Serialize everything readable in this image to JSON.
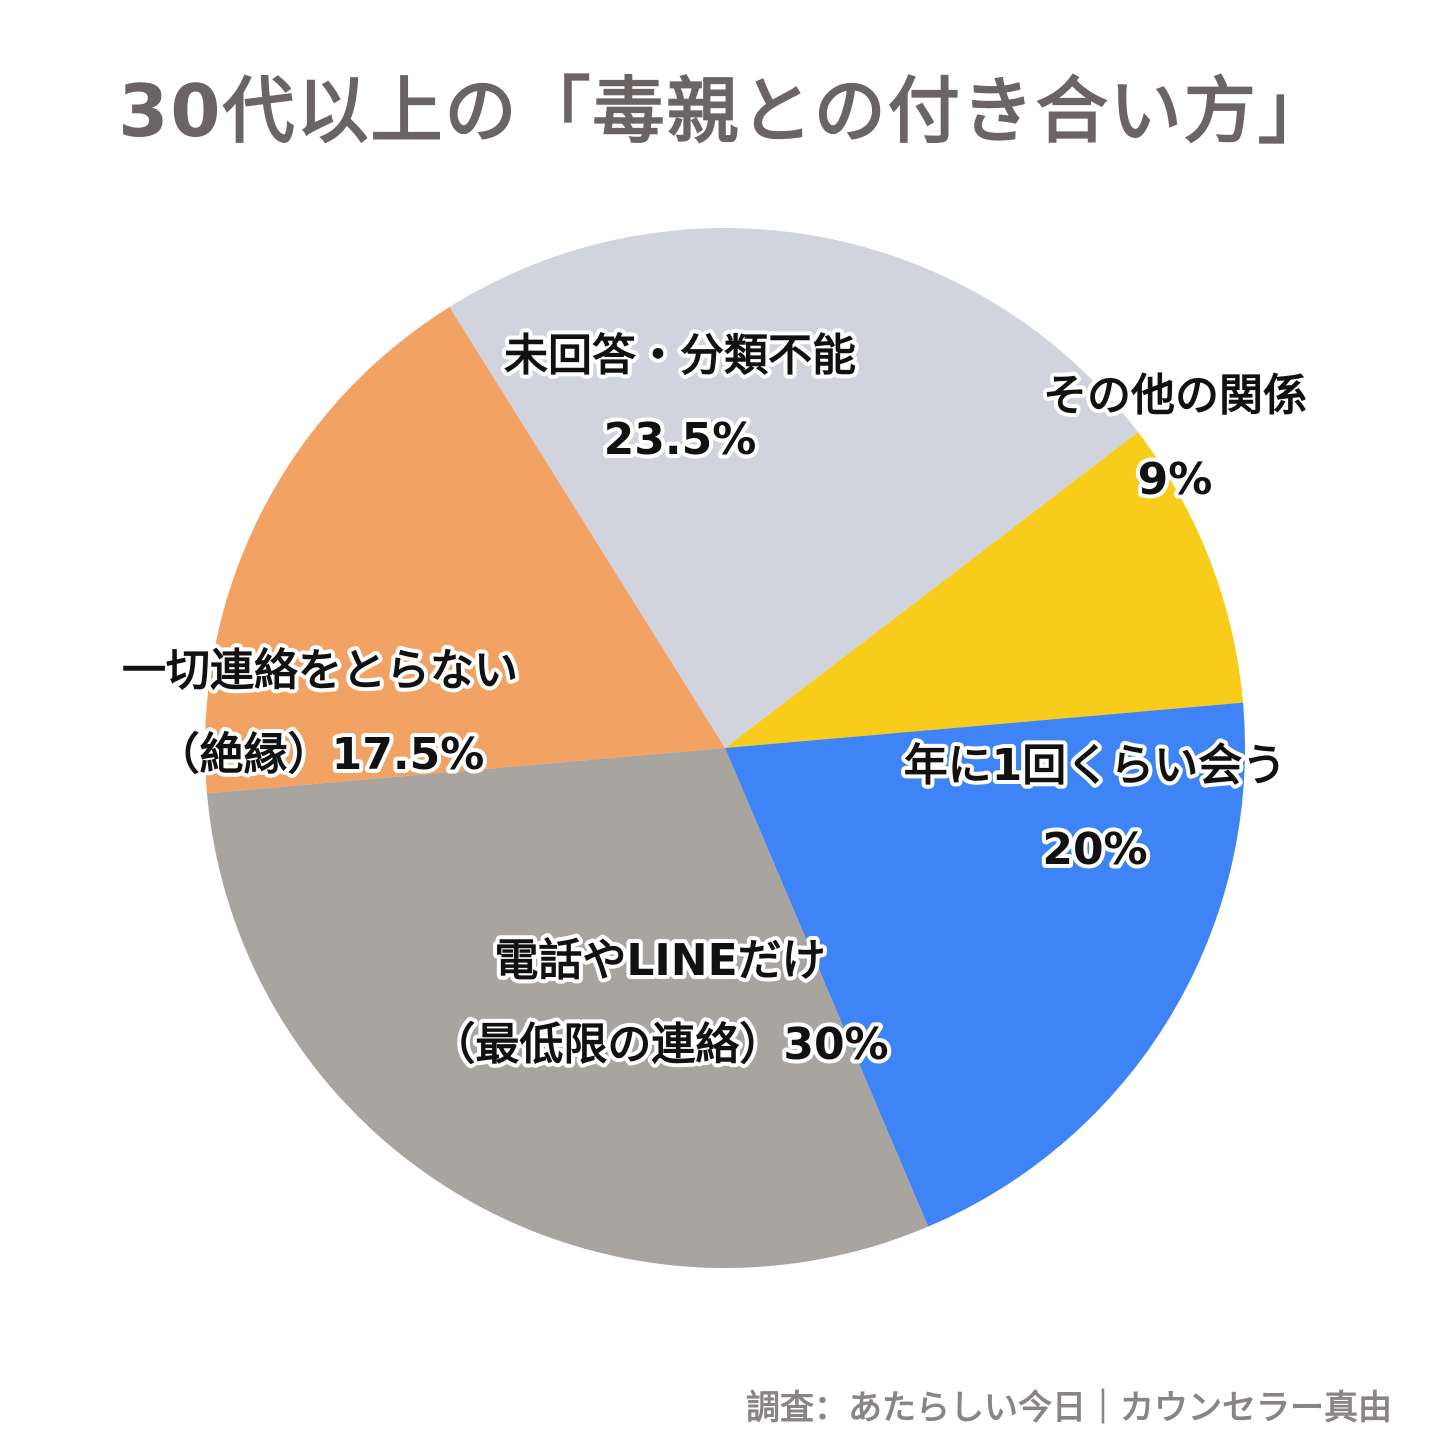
{
  "chart_data": {
    "type": "pie",
    "title": "30代以上の「毒親との付き合い方」",
    "slices": [
      {
        "label_lines": [
          "未回答・分類不能",
          "23.5%"
        ],
        "value": 23.5,
        "color": "#d1d4dc"
      },
      {
        "label_lines": [
          "その他の関係",
          "9%"
        ],
        "value": 9,
        "color": "#f8cc1b"
      },
      {
        "label_lines": [
          "年に1回くらい会う",
          "20%"
        ],
        "value": 20,
        "color": "#3e84f6"
      },
      {
        "label_lines": [
          "電話やLINEだけ",
          "（最低限の連絡）30%"
        ],
        "value": 30,
        "color": "#a8a4a0"
      },
      {
        "label_lines": [
          "一切連絡をとらない",
          "（絶縁）17.5%"
        ],
        "value": 17.5,
        "color": "#f2a263"
      }
    ]
  },
  "source": "調査：あたらしい今日｜カウンセラー真由"
}
